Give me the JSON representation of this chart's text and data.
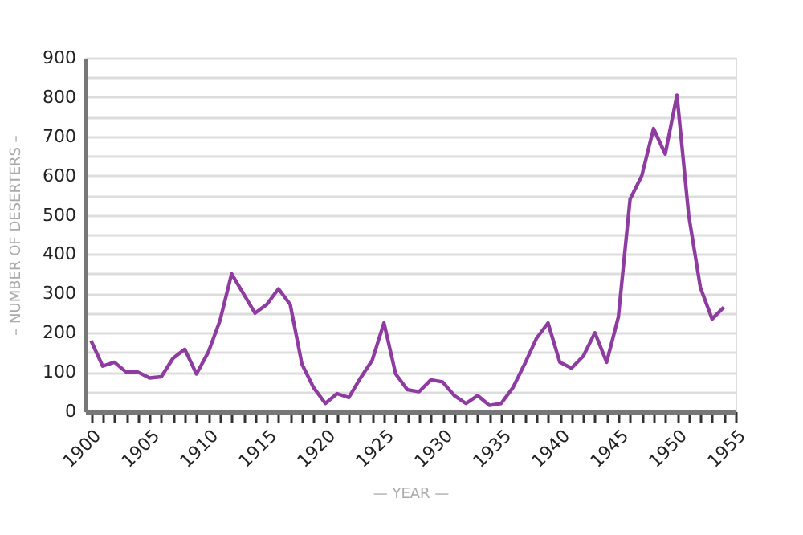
{
  "chart_data": {
    "type": "line",
    "xlabel": "— YEAR —",
    "ylabel": "– NUMBER OF DESERTERS –",
    "x": [
      1900,
      1901,
      1902,
      1903,
      1904,
      1905,
      1906,
      1907,
      1908,
      1909,
      1910,
      1911,
      1912,
      1913,
      1914,
      1915,
      1916,
      1917,
      1918,
      1919,
      1920,
      1921,
      1922,
      1923,
      1924,
      1925,
      1926,
      1927,
      1928,
      1929,
      1930,
      1931,
      1932,
      1933,
      1934,
      1935,
      1936,
      1937,
      1938,
      1939,
      1940,
      1941,
      1942,
      1943,
      1944,
      1945,
      1946,
      1947,
      1948,
      1949,
      1950,
      1951,
      1952,
      1953,
      1954
    ],
    "series": [
      {
        "color": "#8e3ca0",
        "values": [
          180,
          115,
          125,
          100,
          100,
          85,
          88,
          135,
          158,
          95,
          150,
          230,
          350,
          300,
          250,
          272,
          312,
          272,
          120,
          60,
          20,
          45,
          35,
          85,
          130,
          225,
          95,
          55,
          50,
          80,
          75,
          40,
          20,
          40,
          15,
          20,
          60,
          120,
          185,
          225,
          125,
          110,
          140,
          200,
          125,
          240,
          540,
          600,
          720,
          655,
          805,
          500,
          315,
          235,
          265
        ]
      }
    ],
    "xlim": [
      1899.5,
      1955
    ],
    "xticks": [
      1900,
      {
        "value": 1901,
        "label": null
      },
      {
        "value": 1902,
        "label": null
      },
      {
        "value": 1903,
        "label": null
      },
      {
        "value": 1904,
        "label": null
      },
      1905,
      {
        "value": 1906,
        "label": null
      },
      {
        "value": 1907,
        "label": null
      },
      {
        "value": 1908,
        "label": null
      },
      {
        "value": 1909,
        "label": null
      },
      1910,
      {
        "value": 1911,
        "label": null
      },
      {
        "value": 1912,
        "label": null
      },
      {
        "value": 1913,
        "label": null
      },
      {
        "value": 1914,
        "label": null
      },
      1915,
      {
        "value": 1916,
        "label": null
      },
      {
        "value": 1917,
        "label": null
      },
      {
        "value": 1918,
        "label": null
      },
      {
        "value": 1919,
        "label": null
      },
      1920,
      {
        "value": 1921,
        "label": null
      },
      {
        "value": 1922,
        "label": null
      },
      {
        "value": 1923,
        "label": null
      },
      {
        "value": 1924,
        "label": null
      },
      1925,
      {
        "value": 1926,
        "label": null
      },
      {
        "value": 1927,
        "label": null
      },
      {
        "value": 1928,
        "label": null
      },
      {
        "value": 1929,
        "label": null
      },
      1930,
      {
        "value": 1931,
        "label": null
      },
      {
        "value": 1932,
        "label": null
      },
      {
        "value": 1933,
        "label": null
      },
      {
        "value": 1934,
        "label": null
      },
      1935,
      {
        "value": 1936,
        "label": null
      },
      {
        "value": 1937,
        "label": null
      },
      {
        "value": 1938,
        "label": null
      },
      {
        "value": 1939,
        "label": null
      },
      1940,
      {
        "value": 1941,
        "label": null
      },
      {
        "value": 1942,
        "label": null
      },
      {
        "value": 1943,
        "label": null
      },
      {
        "value": 1944,
        "label": null
      },
      1945,
      {
        "value": 1946,
        "label": null
      },
      {
        "value": 1947,
        "label": null
      },
      {
        "value": 1948,
        "label": null
      },
      {
        "value": 1949,
        "label": null
      },
      1950,
      {
        "value": 1951,
        "label": null
      },
      {
        "value": 1952,
        "label": null
      },
      {
        "value": 1953,
        "label": null
      },
      {
        "value": 1954,
        "label": null
      },
      1955
    ],
    "ylim": [
      0,
      900
    ],
    "yticks": [
      0,
      {
        "value": 50,
        "label": null
      },
      100,
      {
        "value": 150,
        "label": null
      },
      200,
      {
        "value": 250,
        "label": null
      },
      300,
      {
        "value": 350,
        "label": null
      },
      400,
      {
        "value": 450,
        "label": null
      },
      500,
      {
        "value": 550,
        "label": null
      },
      600,
      {
        "value": 650,
        "label": null
      },
      700,
      {
        "value": 750,
        "label": null
      },
      800,
      {
        "value": 850,
        "label": null
      },
      900
    ],
    "grid": "y",
    "legend": false,
    "marker": "none",
    "line_style": "solid"
  }
}
